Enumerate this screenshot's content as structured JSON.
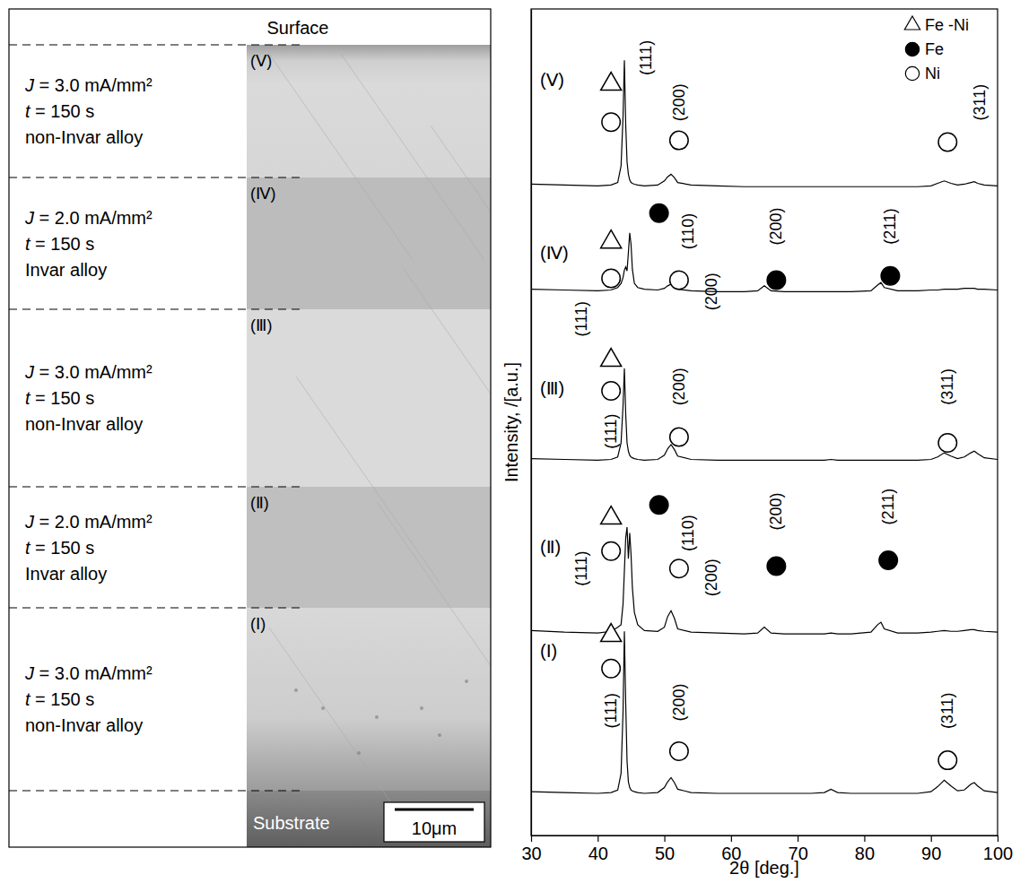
{
  "cross_section": {
    "top_label": "Surface",
    "bottom_label": "Substrate",
    "scale_bar": "10μm",
    "layers": [
      {
        "label": "(Ⅴ)",
        "lines": [
          "J = 3.0 mA/mm²",
          "t = 150 s",
          "non-Invar alloy"
        ]
      },
      {
        "label": "(Ⅳ)",
        "lines": [
          "J = 2.0 mA/mm²",
          "t = 150 s",
          "Invar alloy"
        ]
      },
      {
        "label": "(Ⅲ)",
        "lines": [
          "J = 3.0 mA/mm²",
          "t = 150 s",
          "non-Invar alloy"
        ]
      },
      {
        "label": "(Ⅱ)",
        "lines": [
          "J = 2.0 mA/mm²",
          "t = 150 s",
          "Invar alloy"
        ]
      },
      {
        "label": "(Ⅰ)",
        "lines": [
          "J = 3.0 mA/mm²",
          "t = 150 s",
          "non-Invar alloy"
        ]
      }
    ]
  },
  "chart_data": {
    "type": "line",
    "xlabel": "2θ [deg.]",
    "ylabel": "Intensity, /[a.u.]",
    "xlim": [
      30,
      100
    ],
    "xticks": [
      30,
      40,
      50,
      60,
      70,
      80,
      90,
      100
    ],
    "ylim": [
      0,
      100
    ],
    "tick_labels": "x",
    "legend": "upper right",
    "phases": [
      {
        "name": "Fe -Ni",
        "marker": "triangle"
      },
      {
        "name": "Fe",
        "marker": "filled_circle"
      },
      {
        "name": "Ni",
        "marker": "open_circle"
      }
    ],
    "x": [
      30,
      35,
      40,
      42,
      43,
      43.5,
      43.8,
      44,
      44.2,
      44.4,
      44.6,
      44.8,
      45,
      45.2,
      45.5,
      46,
      47,
      49,
      50,
      50.5,
      51,
      51.5,
      52,
      54,
      58,
      62,
      64,
      65,
      66,
      68,
      72,
      74,
      75,
      76,
      78,
      81,
      82,
      82.5,
      83,
      85,
      88,
      90,
      91,
      92,
      93,
      94,
      95,
      96,
      96.5,
      97,
      98,
      100
    ],
    "series": [
      {
        "name": "(Ⅰ)",
        "color": "#000000",
        "values": [
          5.3,
          5.2,
          5.1,
          5.2,
          5.5,
          7.5,
          15,
          24.7,
          16,
          9,
          6.5,
          5.8,
          5.5,
          5.4,
          5.3,
          5.2,
          5.1,
          5.2,
          5.8,
          6.5,
          7.0,
          6.4,
          5.6,
          5.2,
          5.1,
          5.1,
          5.1,
          5.1,
          5.1,
          5.1,
          5.1,
          5.2,
          5.6,
          5.2,
          5.1,
          5.1,
          5.1,
          5.1,
          5.1,
          5.1,
          5.1,
          5.3,
          5.9,
          6.7,
          6.0,
          5.4,
          5.5,
          6.2,
          6.4,
          6.0,
          5.4,
          5.2
        ]
      },
      {
        "name": "(Ⅱ)",
        "color": "#000000",
        "values": [
          24.8,
          24.6,
          24.5,
          24.7,
          25.2,
          25.5,
          28,
          32,
          36,
          37.3,
          33.5,
          36.6,
          34,
          30,
          27,
          25.5,
          24.8,
          24.7,
          25.2,
          26.5,
          27.2,
          26.3,
          25,
          24.6,
          24.5,
          24.4,
          24.5,
          25.2,
          24.5,
          24.4,
          24.4,
          24.4,
          24.5,
          24.4,
          24.4,
          24.6,
          25.5,
          25.8,
          25.0,
          24.5,
          24.5,
          24.6,
          24.7,
          24.8,
          24.7,
          24.7,
          24.8,
          24.9,
          24.9,
          24.8,
          24.7,
          24.6
        ]
      },
      {
        "name": "(Ⅲ)",
        "color": "#000000",
        "values": [
          45.6,
          45.5,
          45.4,
          45.5,
          45.8,
          47.5,
          52,
          56.5,
          51,
          47.5,
          46.5,
          46,
          45.8,
          45.7,
          45.6,
          45.5,
          45.4,
          45.5,
          46,
          46.8,
          47.3,
          46.7,
          45.9,
          45.5,
          45.4,
          45.4,
          45.4,
          45.4,
          45.4,
          45.4,
          45.4,
          45.4,
          45.5,
          45.4,
          45.4,
          45.4,
          45.4,
          45.4,
          45.4,
          45.4,
          45.4,
          45.5,
          45.8,
          46.3,
          45.9,
          45.6,
          45.8,
          46.3,
          46.5,
          46.2,
          45.7,
          45.5
        ]
      },
      {
        "name": "(Ⅳ)",
        "color": "#000000",
        "values": [
          66.1,
          66.0,
          65.9,
          66.0,
          66.3,
          66.8,
          67.5,
          68.4,
          68.8,
          68.3,
          70.5,
          72.9,
          71.5,
          68.5,
          66.8,
          66.3,
          66.1,
          66.0,
          66.2,
          66.5,
          66.7,
          66.4,
          66.1,
          65.9,
          65.8,
          65.8,
          65.9,
          66.5,
          65.9,
          65.8,
          65.8,
          65.8,
          65.8,
          65.8,
          65.8,
          65.9,
          66.6,
          66.9,
          66.3,
          65.9,
          65.9,
          66.0,
          66.0,
          66.1,
          66.1,
          66.1,
          66.2,
          66.2,
          66.2,
          66.1,
          66.1,
          66.0
        ]
      },
      {
        "name": "(Ⅴ)",
        "color": "#000000",
        "values": [
          78.8,
          78.7,
          78.6,
          78.7,
          79.0,
          81,
          87,
          93.8,
          86,
          81.5,
          80,
          79.3,
          79.0,
          78.9,
          78.8,
          78.7,
          78.6,
          78.7,
          79.2,
          79.7,
          80.0,
          79.6,
          79.0,
          78.7,
          78.6,
          78.5,
          78.5,
          78.5,
          78.5,
          78.5,
          78.5,
          78.5,
          78.5,
          78.5,
          78.5,
          78.5,
          78.5,
          78.5,
          78.5,
          78.5,
          78.5,
          78.6,
          78.9,
          79.2,
          78.9,
          78.7,
          78.8,
          79.0,
          79.1,
          78.9,
          78.7,
          78.6
        ]
      }
    ],
    "annotations": [
      {
        "x": 47.2,
        "y": 94.1,
        "text": "(111)"
      },
      {
        "x": 52.2,
        "y": 88.7,
        "text": "(200)"
      },
      {
        "x": 97.3,
        "y": 88.7,
        "text": "(311)"
      },
      {
        "x": 37.5,
        "y": 62.5,
        "text": "(111)"
      },
      {
        "x": 53.6,
        "y": 73.1,
        "text": "(110)"
      },
      {
        "x": 57.0,
        "y": 65.8,
        "text": "(200)"
      },
      {
        "x": 66.8,
        "y": 73.7,
        "text": "(200)"
      },
      {
        "x": 83.9,
        "y": 73.7,
        "text": "(211)"
      },
      {
        "x": 42.0,
        "y": 48.9,
        "text": "(111)"
      },
      {
        "x": 52.2,
        "y": 54.3,
        "text": "(200)"
      },
      {
        "x": 92.5,
        "y": 54.3,
        "text": "(311)"
      },
      {
        "x": 37.5,
        "y": 32.3,
        "text": "(111)"
      },
      {
        "x": 53.6,
        "y": 36.6,
        "text": "(110)"
      },
      {
        "x": 57.0,
        "y": 31.2,
        "text": "(200)"
      },
      {
        "x": 66.8,
        "y": 39.2,
        "text": "(200)"
      },
      {
        "x": 83.6,
        "y": 39.8,
        "text": "(211)"
      },
      {
        "x": 42.0,
        "y": 15.1,
        "text": "(111)"
      },
      {
        "x": 52.2,
        "y": 16.1,
        "text": "(200)"
      },
      {
        "x": 92.5,
        "y": 15.1,
        "text": "(311)"
      }
    ],
    "phase_markers": [
      {
        "x": 42.0,
        "y": 90.9,
        "marker": "triangle"
      },
      {
        "x": 42.0,
        "y": 86.3,
        "marker": "open_circle"
      },
      {
        "x": 52.2,
        "y": 84.1,
        "marker": "open_circle"
      },
      {
        "x": 92.5,
        "y": 83.9,
        "marker": "open_circle"
      },
      {
        "x": 42.0,
        "y": 71.8,
        "marker": "triangle"
      },
      {
        "x": 42.0,
        "y": 67.4,
        "marker": "open_circle"
      },
      {
        "x": 49.2,
        "y": 75.3,
        "marker": "filled_circle"
      },
      {
        "x": 52.2,
        "y": 67.2,
        "marker": "open_circle"
      },
      {
        "x": 66.8,
        "y": 67.2,
        "marker": "filled_circle"
      },
      {
        "x": 83.9,
        "y": 67.7,
        "marker": "filled_circle"
      },
      {
        "x": 42.0,
        "y": 57.5,
        "marker": "triangle"
      },
      {
        "x": 42.0,
        "y": 53.8,
        "marker": "open_circle"
      },
      {
        "x": 52.2,
        "y": 48.2,
        "marker": "open_circle"
      },
      {
        "x": 92.5,
        "y": 47.5,
        "marker": "open_circle"
      },
      {
        "x": 42.0,
        "y": 38.4,
        "marker": "triangle"
      },
      {
        "x": 42.0,
        "y": 34.4,
        "marker": "open_circle"
      },
      {
        "x": 49.2,
        "y": 40.0,
        "marker": "filled_circle"
      },
      {
        "x": 52.2,
        "y": 32.3,
        "marker": "open_circle"
      },
      {
        "x": 66.8,
        "y": 32.6,
        "marker": "filled_circle"
      },
      {
        "x": 83.6,
        "y": 33.3,
        "marker": "filled_circle"
      },
      {
        "x": 42.0,
        "y": 24.2,
        "marker": "triangle"
      },
      {
        "x": 42.0,
        "y": 20.2,
        "marker": "open_circle"
      },
      {
        "x": 52.2,
        "y": 10.2,
        "marker": "open_circle"
      },
      {
        "x": 92.5,
        "y": 9.1,
        "marker": "open_circle"
      }
    ]
  }
}
